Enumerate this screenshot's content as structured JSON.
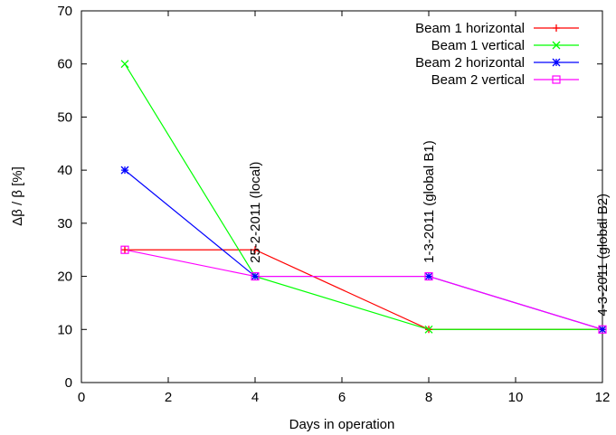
{
  "chart_data": {
    "type": "line",
    "xlabel": "Days in operation",
    "ylabel": "Δβ / β [%]",
    "xlim": [
      0,
      12
    ],
    "ylim": [
      0,
      70
    ],
    "xticks": [
      0,
      2,
      4,
      6,
      8,
      10,
      12
    ],
    "yticks": [
      0,
      10,
      20,
      30,
      40,
      50,
      60,
      70
    ],
    "grid": false,
    "legend_position": "top-right",
    "series": [
      {
        "name": "Beam 1 horizontal",
        "color": "#ff0000",
        "marker": "plus",
        "x": [
          1,
          4,
          8,
          12
        ],
        "y": [
          25,
          25,
          10,
          10
        ]
      },
      {
        "name": "Beam 1 vertical",
        "color": "#00ff00",
        "marker": "cross",
        "x": [
          1,
          4,
          8,
          12
        ],
        "y": [
          60,
          20,
          10,
          10
        ]
      },
      {
        "name": "Beam 2 horizontal",
        "color": "#0000ff",
        "marker": "star",
        "x": [
          1,
          4,
          8,
          12
        ],
        "y": [
          40,
          20,
          20,
          10
        ]
      },
      {
        "name": "Beam 2 vertical",
        "color": "#ff00ff",
        "marker": "square",
        "x": [
          1,
          4,
          8,
          12
        ],
        "y": [
          25,
          20,
          20,
          10
        ]
      }
    ],
    "annotations": [
      {
        "text": "25-2-2011 (local)",
        "x": 4,
        "y": 22.5
      },
      {
        "text": "1-3-2011 (global B1)",
        "x": 8,
        "y": 22.5
      },
      {
        "text": "4-3-2011 (global B2)",
        "x": 12,
        "y": 12.5
      }
    ]
  }
}
